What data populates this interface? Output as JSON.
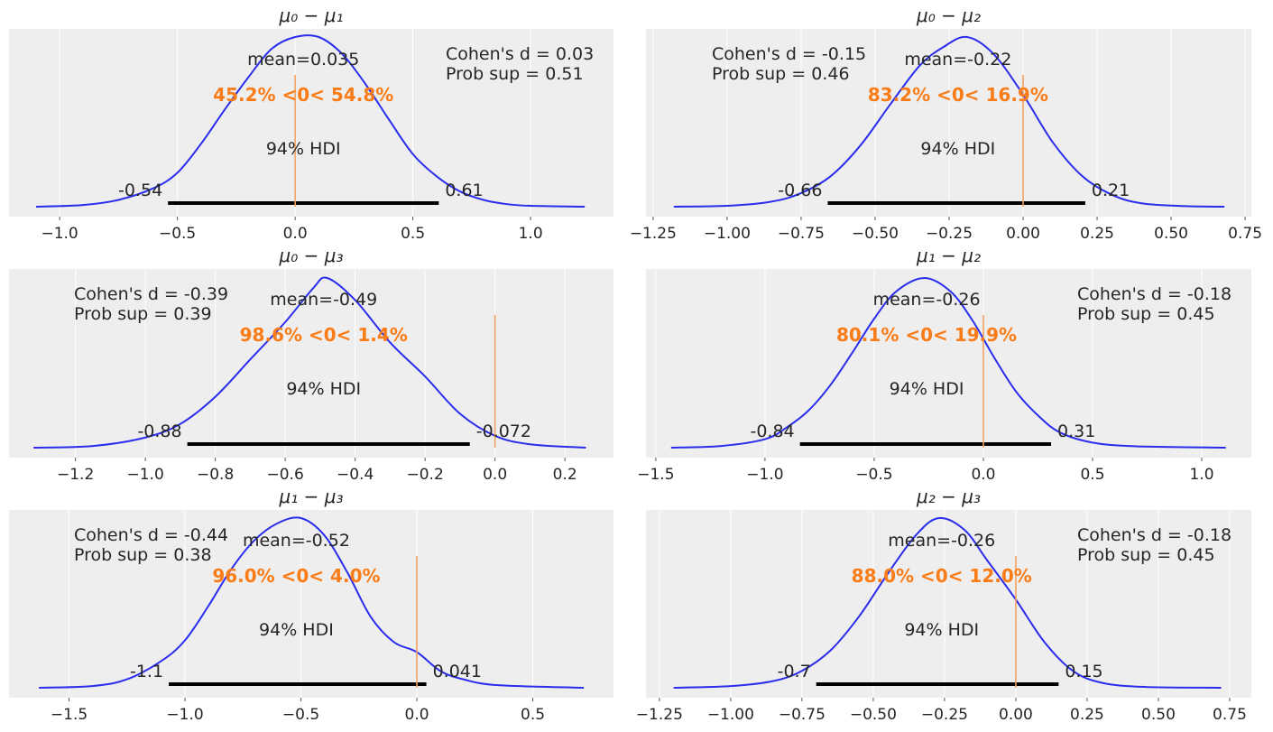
{
  "colors": {
    "background": "#eeeeee",
    "grid": "#ffffff",
    "kde": "#2a2eec",
    "ref_text": "#fa7c17",
    "ref_line": "#f4a261",
    "hdi_bar": "#000000"
  },
  "chart_data": [
    {
      "type": "line",
      "title": "μ₀ − μ₁",
      "xlim": [
        -1.215,
        1.352
      ],
      "grid": "vertical",
      "ticks": [
        -1.0,
        -0.5,
        0.0,
        0.5,
        1.0
      ],
      "tick_labels": [
        "−1.0",
        "−0.5",
        "0.0",
        "0.5",
        "1.0"
      ],
      "mean": 0.035,
      "mean_label": "mean=0.035",
      "hdi": [
        -0.54,
        0.61
      ],
      "hdi_low_label": "-0.54",
      "hdi_high_label": "0.61",
      "hdi_label": "94% HDI",
      "ref_val": 0,
      "ref_label": "45.2% <0< 54.8%",
      "effect": [
        "Cohen's d = 0.03",
        "Prob sup = 0.51"
      ],
      "effect_position": "upper-right",
      "kde": [
        [
          -1.1,
          0
        ],
        [
          -0.9,
          0.01
        ],
        [
          -0.75,
          0.04
        ],
        [
          -0.6,
          0.11
        ],
        [
          -0.5,
          0.2
        ],
        [
          -0.4,
          0.37
        ],
        [
          -0.3,
          0.57
        ],
        [
          -0.2,
          0.76
        ],
        [
          -0.1,
          0.93
        ],
        [
          0.0,
          1.0
        ],
        [
          0.1,
          1.0
        ],
        [
          0.2,
          0.9
        ],
        [
          0.3,
          0.72
        ],
        [
          0.4,
          0.51
        ],
        [
          0.5,
          0.31
        ],
        [
          0.6,
          0.18
        ],
        [
          0.7,
          0.09
        ],
        [
          0.8,
          0.04
        ],
        [
          0.9,
          0.015
        ],
        [
          1.0,
          0.005
        ],
        [
          1.23,
          0
        ]
      ]
    },
    {
      "type": "line",
      "title": "μ₀ − μ₂",
      "xlim": [
        -1.274,
        0.771
      ],
      "grid": "vertical",
      "ticks": [
        -1.25,
        -1.0,
        -0.75,
        -0.5,
        -0.25,
        0.0,
        0.25,
        0.5,
        0.75
      ],
      "tick_labels": [
        "−1.25",
        "−1.00",
        "−0.75",
        "−0.50",
        "−0.25",
        "0.00",
        "0.25",
        "0.50",
        "0.75"
      ],
      "mean": -0.22,
      "mean_label": "mean=-0.22",
      "hdi": [
        -0.66,
        0.21
      ],
      "hdi_low_label": "-0.66",
      "hdi_high_label": "0.21",
      "hdi_label": "94% HDI",
      "ref_val": 0,
      "ref_label": "83.2% <0< 16.9%",
      "effect": [
        "Cohen's d = -0.15",
        "Prob sup = 0.46"
      ],
      "effect_position": "upper-left",
      "kde": [
        [
          -1.18,
          0
        ],
        [
          -1.0,
          0.005
        ],
        [
          -0.85,
          0.03
        ],
        [
          -0.75,
          0.08
        ],
        [
          -0.65,
          0.18
        ],
        [
          -0.55,
          0.36
        ],
        [
          -0.45,
          0.6
        ],
        [
          -0.35,
          0.83
        ],
        [
          -0.27,
          0.94
        ],
        [
          -0.19,
          1.0
        ],
        [
          -0.1,
          0.9
        ],
        [
          0.0,
          0.66
        ],
        [
          0.1,
          0.38
        ],
        [
          0.2,
          0.18
        ],
        [
          0.3,
          0.07
        ],
        [
          0.4,
          0.02
        ],
        [
          0.55,
          0.003
        ],
        [
          0.68,
          0
        ]
      ]
    },
    {
      "type": "line",
      "title": "μ₀ − μ₃",
      "xlim": [
        -1.39,
        0.339
      ],
      "grid": "vertical",
      "ticks": [
        -1.2,
        -1.0,
        -0.8,
        -0.6,
        -0.4,
        -0.2,
        0.0,
        0.2
      ],
      "tick_labels": [
        "−1.2",
        "−1.0",
        "−0.8",
        "−0.6",
        "−0.4",
        "−0.2",
        "0.0",
        "0.2"
      ],
      "mean": -0.49,
      "mean_label": "mean=-0.49",
      "hdi": [
        -0.88,
        -0.072
      ],
      "hdi_low_label": "-0.88",
      "hdi_high_label": "-0.072",
      "hdi_label": "94% HDI",
      "ref_val": 0,
      "ref_label": "98.6% <0< 1.4%",
      "effect": [
        "Cohen's d = -0.39",
        "Prob sup = 0.39"
      ],
      "effect_position": "upper-left",
      "kde": [
        [
          -1.32,
          0
        ],
        [
          -1.15,
          0.01
        ],
        [
          -1.0,
          0.06
        ],
        [
          -0.9,
          0.14
        ],
        [
          -0.8,
          0.3
        ],
        [
          -0.7,
          0.52
        ],
        [
          -0.6,
          0.74
        ],
        [
          -0.52,
          0.94
        ],
        [
          -0.48,
          1.0
        ],
        [
          -0.4,
          0.87
        ],
        [
          -0.3,
          0.62
        ],
        [
          -0.2,
          0.42
        ],
        [
          -0.1,
          0.2
        ],
        [
          0.0,
          0.07
        ],
        [
          0.1,
          0.02
        ],
        [
          0.26,
          0
        ]
      ]
    },
    {
      "type": "line",
      "title": "μ₁ − μ₂",
      "xlim": [
        -1.545,
        1.227
      ],
      "grid": "vertical",
      "ticks": [
        -1.5,
        -1.0,
        -0.5,
        0.0,
        0.5,
        1.0
      ],
      "tick_labels": [
        "−1.5",
        "−1.0",
        "−0.5",
        "0.0",
        "0.5",
        "1.0"
      ],
      "mean": -0.26,
      "mean_label": "mean=-0.26",
      "hdi": [
        -0.84,
        0.31
      ],
      "hdi_low_label": "-0.84",
      "hdi_high_label": "0.31",
      "hdi_label": "94% HDI",
      "ref_val": 0,
      "ref_label": "80.1% <0< 19.9%",
      "effect": [
        "Cohen's d = -0.18",
        "Prob sup = 0.45"
      ],
      "effect_position": "upper-right",
      "kde": [
        [
          -1.43,
          0
        ],
        [
          -1.2,
          0.01
        ],
        [
          -1.0,
          0.05
        ],
        [
          -0.9,
          0.12
        ],
        [
          -0.8,
          0.22
        ],
        [
          -0.7,
          0.37
        ],
        [
          -0.6,
          0.56
        ],
        [
          -0.5,
          0.76
        ],
        [
          -0.4,
          0.92
        ],
        [
          -0.27,
          1.0
        ],
        [
          -0.15,
          0.92
        ],
        [
          -0.05,
          0.75
        ],
        [
          0.05,
          0.53
        ],
        [
          0.15,
          0.33
        ],
        [
          0.25,
          0.19
        ],
        [
          0.35,
          0.09
        ],
        [
          0.5,
          0.03
        ],
        [
          0.7,
          0.008
        ],
        [
          1.11,
          0
        ]
      ]
    },
    {
      "type": "line",
      "title": "μ₁ − μ₃",
      "xlim": [
        -1.759,
        0.848
      ],
      "grid": "vertical",
      "ticks": [
        -1.5,
        -1.0,
        -0.5,
        0.0,
        0.5
      ],
      "tick_labels": [
        "−1.5",
        "−1.0",
        "−0.5",
        "0.0",
        "0.5"
      ],
      "mean": -0.52,
      "mean_label": "mean=-0.52",
      "hdi": [
        -1.07,
        0.041
      ],
      "hdi_low_label": "-1.1",
      "hdi_high_label": "0.041",
      "hdi_label": "94% HDI",
      "ref_val": 0,
      "ref_label": "96.0% <0< 4.0%",
      "effect": [
        "Cohen's d = -0.44",
        "Prob sup = 0.38"
      ],
      "effect_position": "upper-left",
      "kde": [
        [
          -1.63,
          0
        ],
        [
          -1.4,
          0.01
        ],
        [
          -1.25,
          0.05
        ],
        [
          -1.1,
          0.16
        ],
        [
          -1.0,
          0.28
        ],
        [
          -0.9,
          0.48
        ],
        [
          -0.8,
          0.7
        ],
        [
          -0.7,
          0.87
        ],
        [
          -0.6,
          0.97
        ],
        [
          -0.5,
          1.0
        ],
        [
          -0.4,
          0.9
        ],
        [
          -0.3,
          0.68
        ],
        [
          -0.2,
          0.42
        ],
        [
          -0.1,
          0.27
        ],
        [
          0.0,
          0.21
        ],
        [
          0.1,
          0.1
        ],
        [
          0.2,
          0.05
        ],
        [
          0.35,
          0.015
        ],
        [
          0.72,
          0
        ]
      ]
    },
    {
      "type": "line",
      "title": "μ₂ − μ₃",
      "xlim": [
        -1.297,
        0.826
      ],
      "grid": "vertical",
      "ticks": [
        -1.25,
        -1.0,
        -0.75,
        -0.5,
        -0.25,
        0.0,
        0.25,
        0.5,
        0.75
      ],
      "tick_labels": [
        "−1.25",
        "−1.00",
        "−0.75",
        "−0.50",
        "−0.25",
        "0.00",
        "0.25",
        "0.50",
        "0.75"
      ],
      "mean": -0.26,
      "mean_label": "mean=-0.26",
      "hdi": [
        -0.7,
        0.15
      ],
      "hdi_low_label": "-0.7",
      "hdi_high_label": "0.15",
      "hdi_label": "94% HDI",
      "ref_val": 0,
      "ref_label": "88.0% <0< 12.0%",
      "effect": [
        "Cohen's d = -0.18",
        "Prob sup = 0.45"
      ],
      "effect_position": "upper-right",
      "kde": [
        [
          -1.2,
          0
        ],
        [
          -1.0,
          0.01
        ],
        [
          -0.85,
          0.04
        ],
        [
          -0.75,
          0.1
        ],
        [
          -0.65,
          0.22
        ],
        [
          -0.55,
          0.42
        ],
        [
          -0.45,
          0.67
        ],
        [
          -0.35,
          0.9
        ],
        [
          -0.27,
          1.0
        ],
        [
          -0.18,
          0.93
        ],
        [
          -0.1,
          0.75
        ],
        [
          0.0,
          0.52
        ],
        [
          0.1,
          0.27
        ],
        [
          0.2,
          0.1
        ],
        [
          0.3,
          0.03
        ],
        [
          0.45,
          0.005
        ],
        [
          0.72,
          0
        ]
      ]
    }
  ]
}
